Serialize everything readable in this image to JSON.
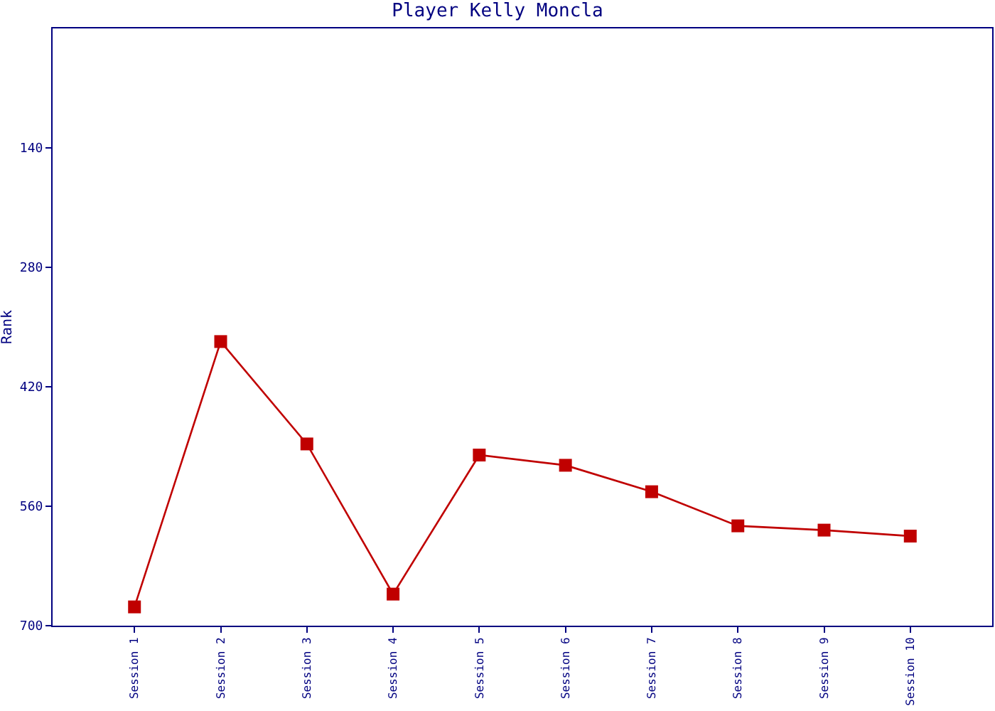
{
  "chart_data": {
    "type": "line",
    "title": "Player Kelly Moncla",
    "ylabel": "Rank",
    "categories": [
      "Session 1",
      "Session 2",
      "Session 3",
      "Session 4",
      "Session 5",
      "Session 6",
      "Session 7",
      "Session 8",
      "Session 9",
      "Session 10"
    ],
    "series": [
      {
        "color": "#c00000",
        "values": [
          678,
          367,
          487,
          663,
          500,
          512,
          543,
          583,
          588,
          595
        ]
      }
    ],
    "ylim": [
      700,
      0
    ],
    "yticks": [
      140,
      280,
      420,
      560,
      700
    ],
    "grid": false,
    "marker": "square",
    "line_style": "solid"
  }
}
